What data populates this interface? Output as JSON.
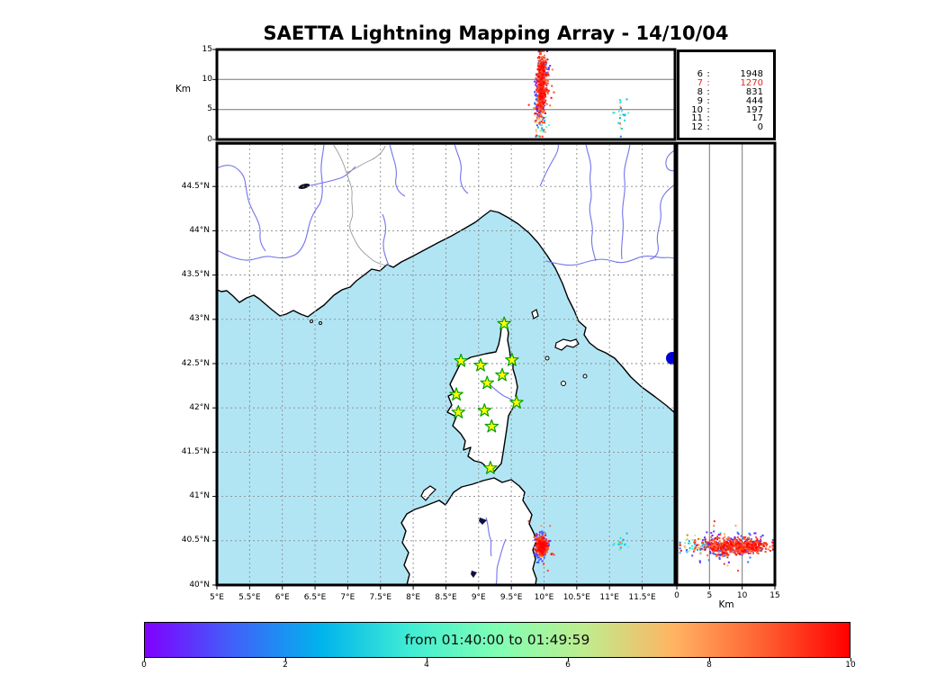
{
  "title": "SAETTA Lightning Mapping Array - 14/10/04",
  "axes": {
    "altitude_label": "Km",
    "right_panel_label": "Km",
    "altitude_ticks": [
      "0",
      "5",
      "10",
      "15"
    ],
    "right_panel_ticks": [
      "0",
      "5",
      "10",
      "15"
    ],
    "latitude_ticks": [
      "40°N",
      "40.5°N",
      "41°N",
      "41.5°N",
      "42°N",
      "42.5°N",
      "43°N",
      "43.5°N",
      "44°N",
      "44.5°N"
    ],
    "longitude_ticks": [
      "5°E",
      "5.5°E",
      "6°E",
      "6.5°E",
      "7°E",
      "7.5°E",
      "8°E",
      "8.5°E",
      "9°E",
      "9.5°E",
      "10°E",
      "10.5°E",
      "11°E",
      "11.5°E"
    ]
  },
  "station_counts": {
    "rows": [
      {
        "label": "6",
        "value": "1948"
      },
      {
        "label": "7",
        "value": "1270"
      },
      {
        "label": "8",
        "value": "831"
      },
      {
        "label": "9",
        "value": "444"
      },
      {
        "label": "10",
        "value": "197"
      },
      {
        "label": "11",
        "value": "17"
      },
      {
        "label": "12",
        "value": "0"
      }
    ],
    "highlight_index": 1,
    "highlight_color": "#e3231a"
  },
  "colorbar": {
    "label": "from 01:40:00 to 01:49:59",
    "ticks": [
      "0",
      "2",
      "4",
      "6",
      "8",
      "10"
    ],
    "gradient": [
      "#8000ff",
      "#4061fa",
      "#00b4ec",
      "#40ecd4",
      "#80ffb4",
      "#bfec8e",
      "#ffb462",
      "#ff6132",
      "#ff0000"
    ]
  },
  "chart_data": {
    "type": "scatter",
    "title": "SAETTA Lightning Mapping Array - 14/10/04",
    "time_window": {
      "from": "01:40:00",
      "to": "01:49:59",
      "colorbar_range": [
        0,
        10
      ]
    },
    "panels": [
      {
        "id": "alt_vs_lon",
        "x": "longitude_deg_E",
        "y": "altitude_km",
        "ylim": [
          0,
          15
        ],
        "yticks": [
          0,
          5,
          10,
          15
        ],
        "gridlines_km": [
          5,
          10
        ]
      },
      {
        "id": "map",
        "x": "longitude_deg_E",
        "y": "latitude_deg_N",
        "xlim": [
          5,
          12.0
        ],
        "ylim": [
          40,
          44.98
        ],
        "grid_step_deg": 0.5
      },
      {
        "id": "alt_vs_lat",
        "x": "altitude_km",
        "y": "latitude_deg_N",
        "xlim": [
          0,
          15
        ],
        "xticks": [
          0,
          5,
          10,
          15
        ],
        "gridlines_km": [
          5,
          10
        ]
      }
    ],
    "stations": [
      {
        "lon": 9.39,
        "lat": 42.95
      },
      {
        "lon": 8.73,
        "lat": 42.53
      },
      {
        "lon": 9.03,
        "lat": 42.48
      },
      {
        "lon": 9.51,
        "lat": 42.54
      },
      {
        "lon": 9.36,
        "lat": 42.37
      },
      {
        "lon": 9.13,
        "lat": 42.28
      },
      {
        "lon": 8.66,
        "lat": 42.15
      },
      {
        "lon": 8.69,
        "lat": 41.95
      },
      {
        "lon": 9.09,
        "lat": 41.97
      },
      {
        "lon": 9.58,
        "lat": 42.06
      },
      {
        "lon": 9.2,
        "lat": 41.79
      },
      {
        "lon": 9.18,
        "lat": 41.32
      }
    ],
    "clusters": [
      {
        "name": "main-storm-core-high",
        "n": 330,
        "lon": 9.97,
        "lon_sd": 0.035,
        "lat": 40.44,
        "lat_sd": 0.04,
        "alt": 9.8,
        "alt_sd": 2.0,
        "t": 9.2,
        "t_sd": 0.5
      },
      {
        "name": "main-storm-core-mid",
        "n": 120,
        "lon": 9.95,
        "lon_sd": 0.03,
        "lat": 40.45,
        "lat_sd": 0.05,
        "alt": 6.8,
        "alt_sd": 1.6,
        "t": 8.9,
        "t_sd": 0.6
      },
      {
        "name": "main-storm-early",
        "n": 130,
        "lon": 9.93,
        "lon_sd": 0.04,
        "lat": 40.43,
        "lat_sd": 0.07,
        "alt": 7.0,
        "alt_sd": 2.2,
        "t": 0.7,
        "t_sd": 0.5
      },
      {
        "name": "main-storm-early-top",
        "n": 55,
        "lon": 9.99,
        "lon_sd": 0.05,
        "lat": 40.46,
        "lat_sd": 0.06,
        "alt": 11.8,
        "alt_sd": 1.4,
        "t": 1.2,
        "t_sd": 0.8
      },
      {
        "name": "main-storm-low-mixed",
        "n": 40,
        "lon": 9.97,
        "lon_sd": 0.05,
        "lat": 40.44,
        "lat_sd": 0.05,
        "alt": 2.2,
        "alt_sd": 1.3,
        "t": null,
        "t_sd": null
      },
      {
        "name": "main-storm-outliers",
        "n": 30,
        "lon": 9.96,
        "lon_sd": 0.09,
        "lat": 40.42,
        "lat_sd": 0.12,
        "alt": 8.0,
        "alt_sd": 3.5,
        "t": 9.0,
        "t_sd": 0.8
      },
      {
        "name": "secondary-cell-cyan",
        "n": 16,
        "lon": 11.18,
        "lon_sd": 0.05,
        "lat": 40.49,
        "lat_sd": 0.04,
        "alt": 4.5,
        "alt_sd": 1.6,
        "t": 3.2,
        "t_sd": 0.6
      },
      {
        "name": "secondary-cell-mixed",
        "n": 8,
        "lon": 11.2,
        "lon_sd": 0.06,
        "lat": 40.47,
        "lat_sd": 0.05,
        "alt": 3.0,
        "alt_sd": 1.5,
        "t": null,
        "t_sd": null
      }
    ],
    "station_marker": {
      "shape": "star",
      "fill": "#ffff00",
      "stroke": "#00a000"
    },
    "map_colors": {
      "sea": "#b2e5f4",
      "land": "#ffffff",
      "coast": "#000000",
      "river": "#7373ee",
      "border": "#999999",
      "lake_bolsena": "#0000d4"
    }
  }
}
